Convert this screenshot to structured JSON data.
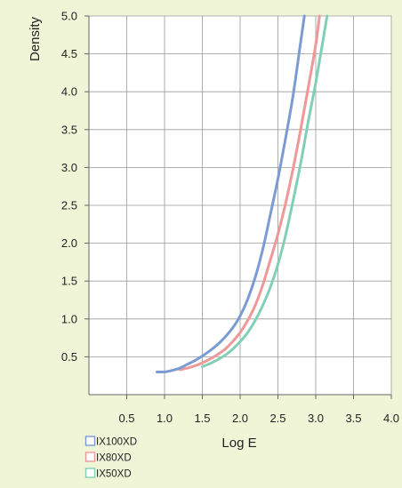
{
  "chart_data": {
    "type": "line",
    "title": "",
    "xlabel": "Log E",
    "ylabel": "Density",
    "xlim": [
      0,
      4.0
    ],
    "ylim": [
      0,
      5.0
    ],
    "x_ticks": [
      "0.5",
      "1.0",
      "1.5",
      "2.0",
      "2.5",
      "3.0",
      "3.5",
      "4.0"
    ],
    "y_ticks": [
      "0.5",
      "1.0",
      "1.5",
      "2.0",
      "2.5",
      "3.0",
      "3.5",
      "4.0",
      "4.5",
      "5.0"
    ],
    "grid": true,
    "legend_position": "bottom-left",
    "series": [
      {
        "name": "IX100XD",
        "color": "#7b9bd3",
        "x": [
          0.9,
          1.0,
          1.1,
          1.2,
          1.3,
          1.4,
          1.5,
          1.6,
          1.7,
          1.8,
          1.9,
          2.0,
          2.1,
          2.2,
          2.3,
          2.4,
          2.5,
          2.6,
          2.7,
          2.8,
          2.85
        ],
        "y": [
          0.3,
          0.3,
          0.32,
          0.35,
          0.4,
          0.45,
          0.51,
          0.58,
          0.66,
          0.76,
          0.88,
          1.04,
          1.26,
          1.55,
          1.92,
          2.38,
          2.85,
          3.38,
          3.95,
          4.65,
          5.0
        ]
      },
      {
        "name": "IX80XD",
        "color": "#ee9898",
        "x": [
          1.2,
          1.3,
          1.4,
          1.5,
          1.6,
          1.7,
          1.8,
          1.9,
          2.0,
          2.1,
          2.2,
          2.3,
          2.4,
          2.5,
          2.6,
          2.7,
          2.8,
          2.9,
          3.0,
          3.05
        ],
        "y": [
          0.33,
          0.35,
          0.38,
          0.42,
          0.47,
          0.53,
          0.6,
          0.7,
          0.82,
          0.98,
          1.18,
          1.45,
          1.78,
          2.12,
          2.52,
          2.98,
          3.5,
          4.05,
          4.62,
          5.0
        ]
      },
      {
        "name": "IX50XD",
        "color": "#82cfb7",
        "x": [
          1.5,
          1.6,
          1.7,
          1.8,
          1.9,
          2.0,
          2.1,
          2.2,
          2.3,
          2.4,
          2.5,
          2.6,
          2.7,
          2.8,
          2.9,
          3.0,
          3.1,
          3.15
        ],
        "y": [
          0.37,
          0.41,
          0.46,
          0.52,
          0.6,
          0.7,
          0.82,
          0.98,
          1.18,
          1.42,
          1.72,
          2.1,
          2.56,
          3.05,
          3.6,
          4.12,
          4.7,
          5.0
        ]
      }
    ]
  }
}
